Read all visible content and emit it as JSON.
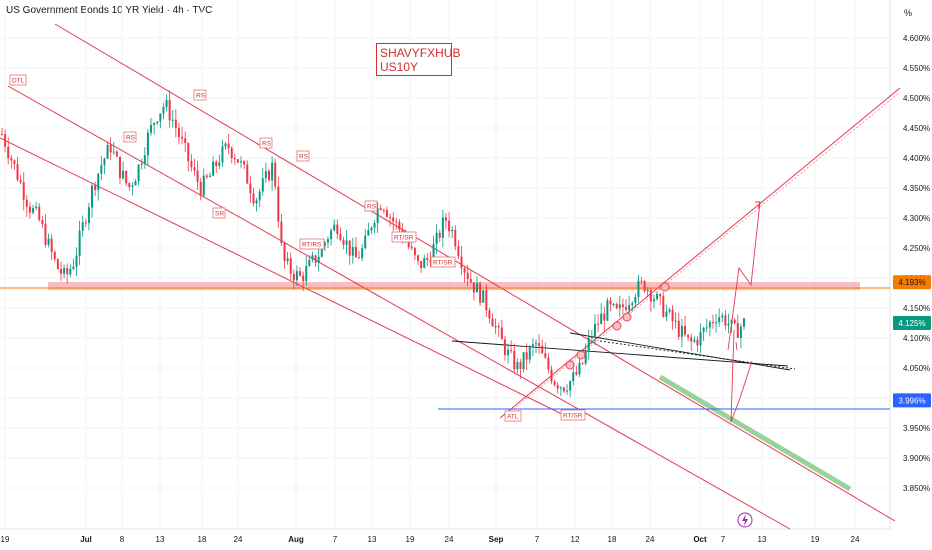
{
  "header": {
    "title": "US Government Bonds 10 YR Yield · 4h · TVC",
    "watermark_line1": "SHAVYFXHUB",
    "watermark_line2": "US10Y",
    "unit": "%"
  },
  "chart_data": {
    "type": "candlestick",
    "ylim": [
      3.82,
      4.63
    ],
    "y_ticks": [
      "4.600%",
      "4.550%",
      "4.500%",
      "4.450%",
      "4.400%",
      "4.350%",
      "4.300%",
      "4.250%",
      "4.200%",
      "4.150%",
      "4.100%",
      "4.050%",
      "4.000%",
      "3.950%",
      "3.900%",
      "3.850%"
    ],
    "x_ticks": [
      "19",
      "Jul",
      "8",
      "13",
      "18",
      "24",
      "Aug",
      "7",
      "13",
      "19",
      "24",
      "Sep",
      "7",
      "12",
      "18",
      "24",
      "Oct",
      "7",
      "13",
      "19",
      "24"
    ],
    "price_labels": [
      {
        "name": "resistance",
        "value": 4.193,
        "label": "4.193%",
        "color": "#f57c00"
      },
      {
        "name": "current",
        "value": 4.125,
        "label": "4.125%",
        "color": "#089981"
      },
      {
        "name": "support",
        "value": 3.996,
        "label": "3.996%",
        "color": "#2962ff"
      }
    ],
    "annotations": [
      "DTL",
      "RS",
      "RS",
      "RS",
      "RS",
      "SR",
      "RT/RS",
      "RS",
      "RT/SR",
      "RT/SR",
      "ATL",
      "RT/SR"
    ],
    "close_path": [
      4.44,
      4.4,
      4.36,
      4.32,
      4.3,
      4.26,
      4.22,
      4.2,
      4.23,
      4.29,
      4.35,
      4.39,
      4.42,
      4.38,
      4.35,
      4.38,
      4.43,
      4.47,
      4.49,
      4.46,
      4.42,
      4.38,
      4.35,
      4.37,
      4.4,
      4.42,
      4.4,
      4.37,
      4.33,
      4.36,
      4.39,
      4.23,
      4.21,
      4.2,
      4.22,
      4.24,
      4.27,
      4.29,
      4.26,
      4.23,
      4.25,
      4.3,
      4.33,
      4.3,
      4.28,
      4.25,
      4.22,
      4.23,
      4.26,
      4.3,
      4.27,
      4.22,
      4.19,
      4.17,
      4.14,
      4.1,
      4.07,
      4.05,
      4.07,
      4.09,
      4.06,
      4.03,
      4.02,
      4.03,
      4.05,
      4.1,
      4.13,
      4.15,
      4.14,
      4.16,
      4.18,
      4.19,
      4.17,
      4.15,
      4.13,
      4.11,
      4.09,
      4.1,
      4.12,
      4.14,
      4.13,
      4.11,
      4.125
    ]
  }
}
